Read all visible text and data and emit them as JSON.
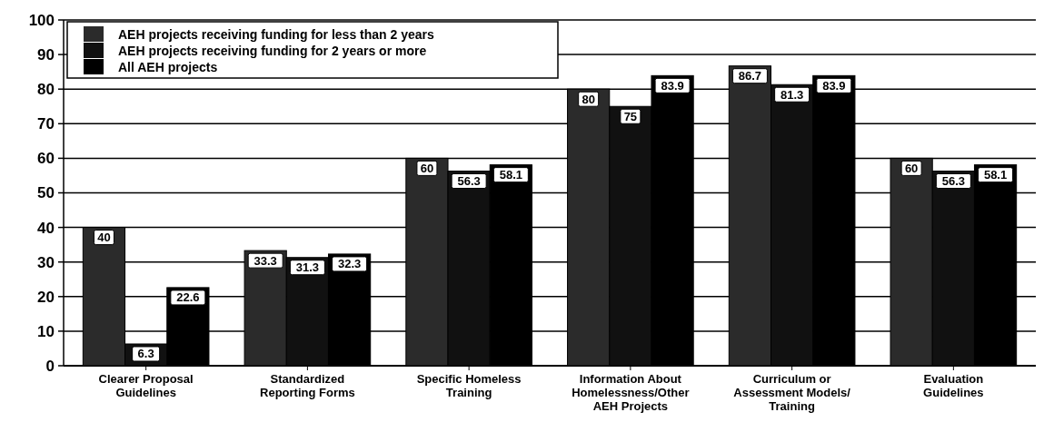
{
  "chart_data": {
    "type": "bar",
    "categories": [
      "Clearer Proposal Guidelines",
      "Standardized Reporting Forms",
      "Specific Homeless Training",
      "Information About Homelessness/Other AEH Projects",
      "Curriculum or Assessment Models/ Training",
      "Evaluation Guidelines"
    ],
    "series": [
      {
        "name": "AEH projects receiving funding for less than 2 years",
        "color": "#2b2b2b",
        "values": [
          40,
          33.3,
          60,
          80,
          86.7,
          60
        ]
      },
      {
        "name": "AEH projects receiving funding for 2 years or more",
        "color": "#111111",
        "values": [
          6.3,
          31.3,
          56.3,
          75,
          81.3,
          56.3
        ]
      },
      {
        "name": "All AEH projects",
        "color": "#000000",
        "values": [
          22.6,
          32.3,
          58.1,
          83.9,
          83.9,
          58.1
        ]
      }
    ],
    "ylim": [
      0,
      100
    ],
    "yticks": [
      0,
      10,
      20,
      30,
      40,
      50,
      60,
      70,
      80,
      90,
      100
    ],
    "grid": "y",
    "legend": "top left",
    "data_labels": true
  }
}
